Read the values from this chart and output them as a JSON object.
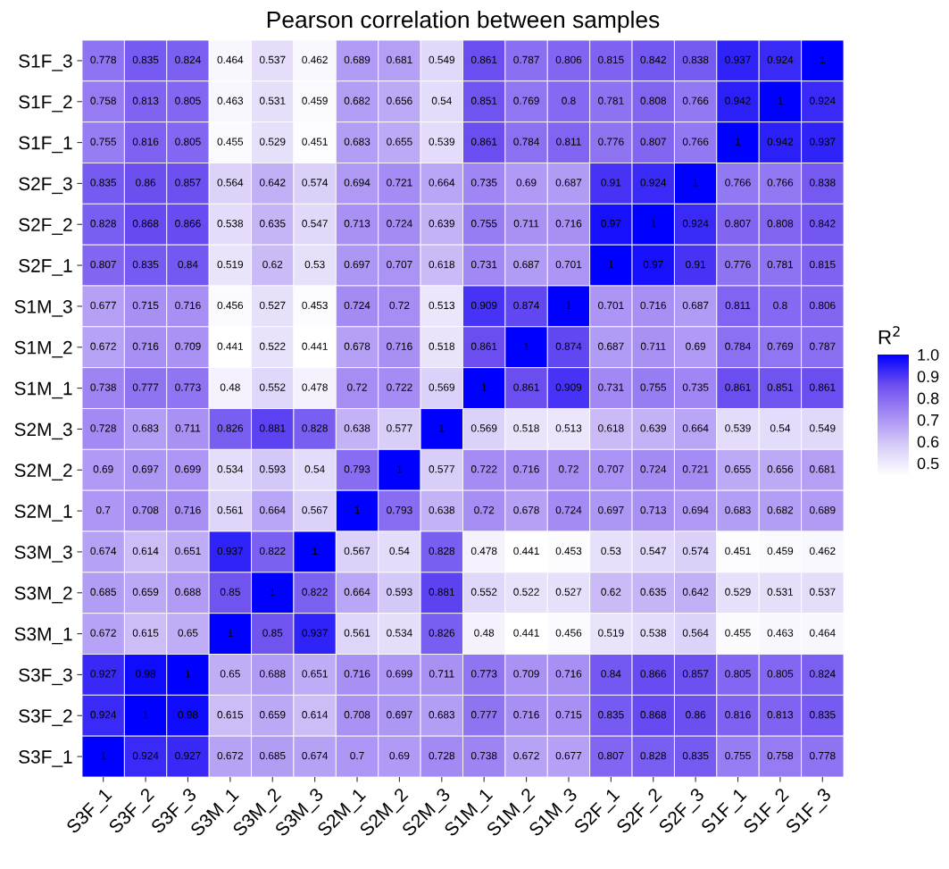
{
  "chart_data": {
    "type": "heatmap",
    "title": "Pearson correlation between samples",
    "clabel": "R$^{2}$",
    "categories": [
      "S3F_1",
      "S3F_2",
      "S3F_3",
      "S3M_1",
      "S3M_2",
      "S3M_3",
      "S2M_1",
      "S2M_2",
      "S2M_3",
      "S1M_1",
      "S1M_2",
      "S1M_3",
      "S2F_1",
      "S2F_2",
      "S2F_3",
      "S1F_1",
      "S1F_2",
      "S1F_3"
    ],
    "y_categories": [
      "S1F_3",
      "S1F_2",
      "S1F_1",
      "S2F_3",
      "S2F_2",
      "S2F_1",
      "S1M_3",
      "S1M_2",
      "S1M_1",
      "S2M_3",
      "S2M_2",
      "S2M_1",
      "S3M_3",
      "S3M_2",
      "S3M_1",
      "S3F_3",
      "S3F_2",
      "S3F_1"
    ],
    "cells": [
      [
        0.778,
        0.835,
        0.824,
        0.464,
        0.537,
        0.462,
        0.689,
        0.681,
        0.549,
        0.861,
        0.787,
        0.806,
        0.815,
        0.842,
        0.838,
        0.937,
        0.924,
        1
      ],
      [
        0.758,
        0.813,
        0.805,
        0.463,
        0.531,
        0.459,
        0.682,
        0.656,
        0.54,
        0.851,
        0.769,
        0.8,
        0.781,
        0.808,
        0.766,
        0.942,
        1,
        0.924
      ],
      [
        0.755,
        0.816,
        0.805,
        0.455,
        0.529,
        0.451,
        0.683,
        0.655,
        0.539,
        0.861,
        0.784,
        0.811,
        0.776,
        0.807,
        0.766,
        1,
        0.942,
        0.937
      ],
      [
        0.835,
        0.86,
        0.857,
        0.564,
        0.642,
        0.574,
        0.694,
        0.721,
        0.664,
        0.735,
        0.69,
        0.687,
        0.91,
        0.924,
        1,
        0.766,
        0.766,
        0.838
      ],
      [
        0.828,
        0.868,
        0.866,
        0.538,
        0.635,
        0.547,
        0.713,
        0.724,
        0.639,
        0.755,
        0.711,
        0.716,
        0.97,
        1,
        0.924,
        0.807,
        0.808,
        0.842
      ],
      [
        0.807,
        0.835,
        0.84,
        0.519,
        0.62,
        0.53,
        0.697,
        0.707,
        0.618,
        0.731,
        0.687,
        0.701,
        1,
        0.97,
        0.91,
        0.776,
        0.781,
        0.815
      ],
      [
        0.677,
        0.715,
        0.716,
        0.456,
        0.527,
        0.453,
        0.724,
        0.72,
        0.513,
        0.909,
        0.874,
        1,
        0.701,
        0.716,
        0.687,
        0.811,
        0.8,
        0.806
      ],
      [
        0.672,
        0.716,
        0.709,
        0.441,
        0.522,
        0.441,
        0.678,
        0.716,
        0.518,
        0.861,
        1,
        0.874,
        0.687,
        0.711,
        0.69,
        0.784,
        0.769,
        0.787
      ],
      [
        0.738,
        0.777,
        0.773,
        0.48,
        0.552,
        0.478,
        0.72,
        0.722,
        0.569,
        1,
        0.861,
        0.909,
        0.731,
        0.755,
        0.735,
        0.861,
        0.851,
        0.861
      ],
      [
        0.728,
        0.683,
        0.711,
        0.826,
        0.881,
        0.828,
        0.638,
        0.577,
        1,
        0.569,
        0.518,
        0.513,
        0.618,
        0.639,
        0.664,
        0.539,
        0.54,
        0.549
      ],
      [
        0.69,
        0.697,
        0.699,
        0.534,
        0.593,
        0.54,
        0.793,
        1,
        0.577,
        0.722,
        0.716,
        0.72,
        0.707,
        0.724,
        0.721,
        0.655,
        0.656,
        0.681
      ],
      [
        0.7,
        0.708,
        0.716,
        0.561,
        0.664,
        0.567,
        1,
        0.793,
        0.638,
        0.72,
        0.678,
        0.724,
        0.697,
        0.713,
        0.694,
        0.683,
        0.682,
        0.689
      ],
      [
        0.674,
        0.614,
        0.651,
        0.937,
        0.822,
        1,
        0.567,
        0.54,
        0.828,
        0.478,
        0.441,
        0.453,
        0.53,
        0.547,
        0.574,
        0.451,
        0.459,
        0.462
      ],
      [
        0.685,
        0.659,
        0.688,
        0.85,
        1,
        0.822,
        0.664,
        0.593,
        0.881,
        0.552,
        0.522,
        0.527,
        0.62,
        0.635,
        0.642,
        0.529,
        0.531,
        0.537
      ],
      [
        0.672,
        0.615,
        0.65,
        1,
        0.85,
        0.937,
        0.561,
        0.534,
        0.826,
        0.48,
        0.441,
        0.456,
        0.519,
        0.538,
        0.564,
        0.455,
        0.463,
        0.464
      ],
      [
        0.927,
        0.98,
        1,
        0.65,
        0.688,
        0.651,
        0.716,
        0.699,
        0.711,
        0.773,
        0.709,
        0.716,
        0.84,
        0.866,
        0.857,
        0.805,
        0.805,
        0.824
      ],
      [
        0.924,
        1,
        0.98,
        0.615,
        0.659,
        0.614,
        0.708,
        0.697,
        0.683,
        0.777,
        0.716,
        0.715,
        0.835,
        0.868,
        0.86,
        0.816,
        0.813,
        0.835
      ],
      [
        1,
        0.924,
        0.927,
        0.672,
        0.685,
        0.674,
        0.7,
        0.69,
        0.728,
        0.738,
        0.672,
        0.677,
        0.807,
        0.828,
        0.835,
        0.755,
        0.758,
        0.778
      ]
    ],
    "clim": [
      0.441,
      1
    ],
    "cticks": [
      {
        "value": 0.5,
        "label": "0.5"
      },
      {
        "value": 0.6,
        "label": "0.6"
      },
      {
        "value": 0.7,
        "label": "0.7"
      },
      {
        "value": 0.8,
        "label": "0.8"
      },
      {
        "value": 0.9,
        "label": "0.9"
      },
      {
        "value": 1,
        "label": "1.0"
      }
    ],
    "data_labels": true
  }
}
